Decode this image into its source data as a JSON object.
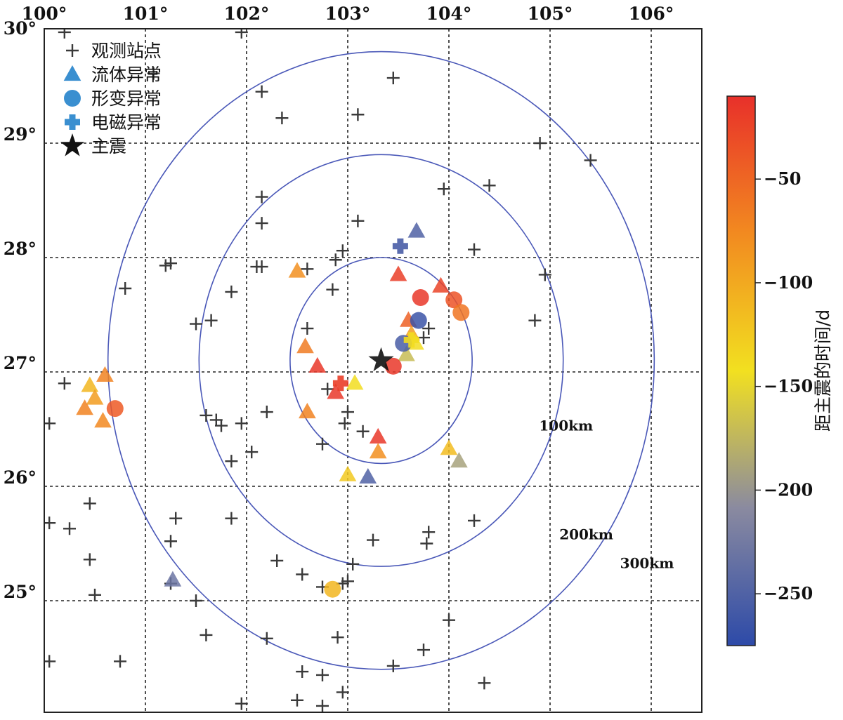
{
  "chart_data": {
    "type": "scatter",
    "xlim": [
      100.0,
      106.5
    ],
    "ylim": [
      24.0,
      30.0
    ],
    "x_ticks": [
      100,
      101,
      102,
      103,
      104,
      105,
      106
    ],
    "y_ticks": [
      25,
      26,
      27,
      28,
      29,
      30
    ],
    "x_tick_labels": [
      "100°",
      "101°",
      "102°",
      "103°",
      "104°",
      "105°",
      "106°"
    ],
    "y_tick_labels": [
      "25°",
      "26°",
      "27°",
      "28°",
      "29°",
      "30°"
    ],
    "grid": "dashed",
    "legend": {
      "position": "top-left",
      "items": [
        {
          "symbol": "plus",
          "label": "观测站点"
        },
        {
          "symbol": "triangle",
          "label": "流体异常"
        },
        {
          "symbol": "circle",
          "label": "形变异常"
        },
        {
          "symbol": "cross",
          "label": "电磁异常"
        },
        {
          "symbol": "star",
          "label": "主震"
        }
      ]
    },
    "rings": [
      {
        "label": "100km",
        "rx": 0.9,
        "ry": 0.9
      },
      {
        "label": "200km",
        "rx": 1.8,
        "ry": 1.8
      },
      {
        "label": "300km",
        "rx": 2.7,
        "ry": 2.7
      }
    ],
    "colorbar": {
      "title": "距主震的时间/d",
      "range": [
        -275,
        -10
      ],
      "ticks": [
        -50,
        -100,
        -150,
        -200,
        -250
      ],
      "tick_labels": [
        "−50",
        "−100",
        "−150",
        "−200",
        "−250"
      ],
      "colors": [
        "#2d4aa8",
        "#8a8aa0",
        "#f2e020",
        "#f28a20",
        "#e8302a"
      ]
    },
    "mainshock": {
      "lon": 103.33,
      "lat": 27.1
    },
    "stations": [
      [
        100.2,
        29.97
      ],
      [
        101.95,
        29.97
      ],
      [
        101.08,
        29.61
      ],
      [
        102.15,
        29.45
      ],
      [
        103.45,
        29.57
      ],
      [
        103.1,
        29.25
      ],
      [
        102.35,
        29.22
      ],
      [
        104.9,
        29.0
      ],
      [
        105.4,
        28.85
      ],
      [
        103.95,
        28.6
      ],
      [
        104.4,
        28.63
      ],
      [
        102.15,
        28.53
      ],
      [
        102.15,
        28.3
      ],
      [
        103.1,
        28.32
      ],
      [
        102.95,
        28.06
      ],
      [
        102.88,
        27.98
      ],
      [
        104.25,
        28.07
      ],
      [
        101.2,
        27.93
      ],
      [
        101.25,
        27.95
      ],
      [
        102.1,
        27.92
      ],
      [
        102.15,
        27.92
      ],
      [
        102.6,
        27.9
      ],
      [
        104.95,
        27.85
      ],
      [
        100.8,
        27.73
      ],
      [
        101.85,
        27.7
      ],
      [
        102.85,
        27.72
      ],
      [
        101.5,
        27.42
      ],
      [
        101.65,
        27.45
      ],
      [
        104.85,
        27.45
      ],
      [
        102.6,
        27.38
      ],
      [
        103.8,
        27.38
      ],
      [
        103.75,
        27.3
      ],
      [
        100.2,
        26.9
      ],
      [
        102.8,
        26.85
      ],
      [
        100.05,
        26.55
      ],
      [
        101.6,
        26.62
      ],
      [
        101.7,
        26.58
      ],
      [
        101.75,
        26.53
      ],
      [
        101.95,
        26.55
      ],
      [
        102.2,
        26.65
      ],
      [
        102.97,
        26.55
      ],
      [
        103.0,
        26.65
      ],
      [
        103.15,
        26.48
      ],
      [
        102.75,
        26.37
      ],
      [
        102.05,
        26.3
      ],
      [
        101.85,
        26.22
      ],
      [
        100.45,
        25.85
      ],
      [
        100.05,
        25.68
      ],
      [
        100.25,
        25.63
      ],
      [
        101.3,
        25.72
      ],
      [
        101.85,
        25.72
      ],
      [
        101.25,
        25.52
      ],
      [
        103.25,
        25.53
      ],
      [
        103.8,
        25.6
      ],
      [
        103.78,
        25.5
      ],
      [
        104.25,
        25.7
      ],
      [
        100.45,
        25.36
      ],
      [
        102.3,
        25.35
      ],
      [
        103.05,
        25.32
      ],
      [
        100.5,
        25.05
      ],
      [
        101.25,
        25.15
      ],
      [
        102.55,
        25.23
      ],
      [
        102.95,
        25.15
      ],
      [
        103.0,
        25.17
      ],
      [
        102.75,
        25.12
      ],
      [
        101.5,
        25.0
      ],
      [
        104.0,
        24.83
      ],
      [
        101.6,
        24.7
      ],
      [
        102.2,
        24.67
      ],
      [
        102.9,
        24.68
      ],
      [
        100.05,
        24.47
      ],
      [
        100.75,
        24.47
      ],
      [
        103.45,
        24.43
      ],
      [
        103.75,
        24.57
      ],
      [
        102.55,
        24.38
      ],
      [
        102.75,
        24.35
      ],
      [
        104.35,
        24.28
      ],
      [
        102.95,
        24.2
      ],
      [
        102.5,
        24.13
      ],
      [
        101.95,
        24.1
      ],
      [
        102.75,
        24.08
      ]
    ],
    "anomalies": {
      "fluid": [
        {
          "lon": 103.68,
          "lat": 28.23,
          "t": -250
        },
        {
          "lon": 103.5,
          "lat": 27.85,
          "t": -20
        },
        {
          "lon": 102.5,
          "lat": 27.88,
          "t": -80
        },
        {
          "lon": 103.92,
          "lat": 27.75,
          "t": -25
        },
        {
          "lon": 103.6,
          "lat": 27.45,
          "t": -45
        },
        {
          "lon": 103.63,
          "lat": 27.33,
          "t": -90
        },
        {
          "lon": 103.67,
          "lat": 27.25,
          "t": -140
        },
        {
          "lon": 103.58,
          "lat": 27.15,
          "t": -170
        },
        {
          "lon": 102.58,
          "lat": 27.22,
          "t": -65
        },
        {
          "lon": 102.7,
          "lat": 27.05,
          "t": -15
        },
        {
          "lon": 103.07,
          "lat": 26.9,
          "t": -140
        },
        {
          "lon": 102.88,
          "lat": 26.82,
          "t": -15
        },
        {
          "lon": 102.6,
          "lat": 26.65,
          "t": -70
        },
        {
          "lon": 103.3,
          "lat": 26.43,
          "t": -15
        },
        {
          "lon": 103.3,
          "lat": 26.3,
          "t": -80
        },
        {
          "lon": 104.0,
          "lat": 26.33,
          "t": -115
        },
        {
          "lon": 104.1,
          "lat": 26.22,
          "t": -190
        },
        {
          "lon": 103.0,
          "lat": 26.1,
          "t": -125
        },
        {
          "lon": 103.2,
          "lat": 26.08,
          "t": -250
        },
        {
          "lon": 100.6,
          "lat": 26.97,
          "t": -70
        },
        {
          "lon": 100.45,
          "lat": 26.88,
          "t": -110
        },
        {
          "lon": 100.5,
          "lat": 26.77,
          "t": -90
        },
        {
          "lon": 100.4,
          "lat": 26.68,
          "t": -70
        },
        {
          "lon": 100.58,
          "lat": 26.57,
          "t": -75
        },
        {
          "lon": 101.27,
          "lat": 25.18,
          "t": -230
        }
      ],
      "deformation": [
        {
          "lon": 103.72,
          "lat": 27.65,
          "t": -15
        },
        {
          "lon": 104.05,
          "lat": 27.63,
          "t": -35
        },
        {
          "lon": 104.12,
          "lat": 27.52,
          "t": -60
        },
        {
          "lon": 103.7,
          "lat": 27.45,
          "t": -265
        },
        {
          "lon": 103.55,
          "lat": 27.25,
          "t": -255
        },
        {
          "lon": 103.45,
          "lat": 27.05,
          "t": -15
        },
        {
          "lon": 100.7,
          "lat": 26.68,
          "t": -40
        },
        {
          "lon": 102.85,
          "lat": 25.1,
          "t": -110
        }
      ],
      "electromagnetic": [
        {
          "lon": 103.52,
          "lat": 28.1,
          "t": -255
        },
        {
          "lon": 102.93,
          "lat": 26.9,
          "t": -20
        },
        {
          "lon": 103.63,
          "lat": 27.28,
          "t": -140
        }
      ]
    }
  }
}
